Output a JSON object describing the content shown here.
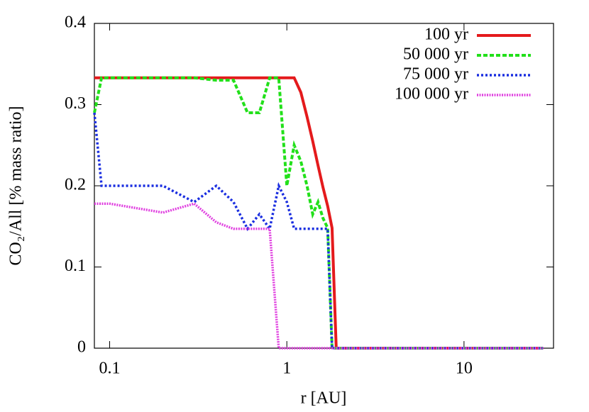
{
  "chart_data": {
    "type": "line",
    "xlabel": "r [AU]",
    "ylabel": "CO₂/All [% mass ratio]",
    "xscale": "log",
    "xlim": [
      0.082,
      32
    ],
    "xticks": [
      0.1,
      1,
      10
    ],
    "ylim": [
      0,
      0.4
    ],
    "yticks": [
      0,
      0.1,
      0.2,
      0.3,
      0.4
    ],
    "legend": "top-right",
    "x": [
      0.082,
      0.09,
      0.1,
      0.2,
      0.3,
      0.4,
      0.5,
      0.6,
      0.7,
      0.8,
      0.9,
      1,
      1.1,
      1.2,
      1.3,
      1.4,
      1.5,
      1.6,
      1.7,
      1.8,
      1.9,
      28
    ],
    "series": [
      {
        "name": "100 yr",
        "color": "#e41a1c",
        "values": [
          0.333,
          0.333,
          0.333,
          0.333,
          0.333,
          0.333,
          0.333,
          0.333,
          0.333,
          0.333,
          0.333,
          0.333,
          0.333,
          0.315,
          0.285,
          0.255,
          0.225,
          0.198,
          0.175,
          0.148,
          0,
          0
        ]
      },
      {
        "name": "50 000 yr",
        "color": "#22e01a",
        "values": [
          0.29,
          0.333,
          0.333,
          0.333,
          0.333,
          0.33,
          0.33,
          0.29,
          0.29,
          0.333,
          0.333,
          0.2,
          0.25,
          0.23,
          0.2,
          0.165,
          0.18,
          0.16,
          0.148,
          0,
          0,
          0
        ]
      },
      {
        "name": "75 000 yr",
        "color": "#1a2ee0",
        "values": [
          0.29,
          0.2,
          0.2,
          0.2,
          0.18,
          0.2,
          0.18,
          0.147,
          0.165,
          0.147,
          0.2,
          0.18,
          0.147,
          0.147,
          0.147,
          0.147,
          0.147,
          0.147,
          0.147,
          0,
          0,
          0
        ]
      },
      {
        "name": "100 000 yr",
        "color": "#e040e0",
        "values": [
          0.178,
          0.178,
          0.178,
          0.167,
          0.178,
          0.155,
          0.147,
          0.147,
          0.147,
          0.147,
          0,
          0,
          0,
          0,
          0,
          0,
          0,
          0,
          0,
          0,
          0,
          0
        ]
      }
    ]
  }
}
